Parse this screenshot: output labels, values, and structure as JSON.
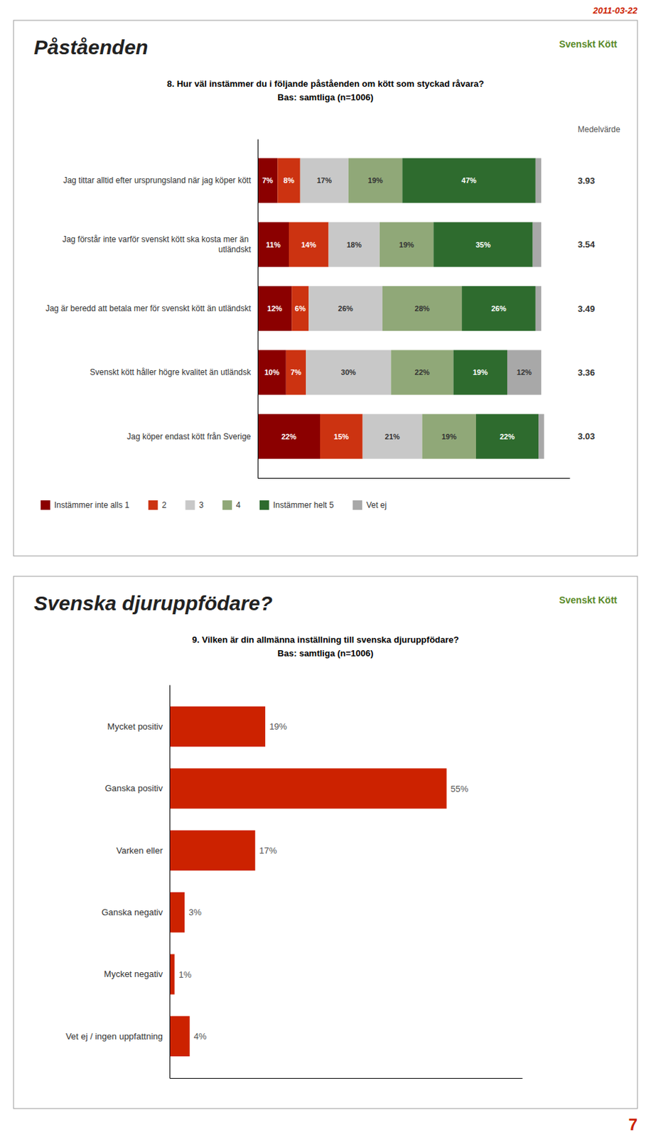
{
  "chart_data": [
    {
      "type": "bar",
      "orientation": "horizontal",
      "stacked": true,
      "title": "Påståenden",
      "subtitle": [
        "8. Hur väl instämmer du i följande påståenden om kött som styckad råvara?",
        "Bas: samtliga (n=1006)"
      ],
      "annotations": [
        "Svenskt Kött",
        "2011-03-22"
      ],
      "categories": [
        "Jag tittar alltid efter ursprungsland när jag köper kött",
        "Jag förstår inte varför svenskt kött ska kosta mer än utländskt",
        "Jag är beredd att betala mer för svenskt kött än utländskt",
        "Svenskt kött håller högre kvalitet än utländsk",
        "Jag köper endast kött från Sverige"
      ],
      "series": [
        {
          "name": "Instämmer inte alls 1",
          "color": "#8B0000",
          "values": [
            7,
            11,
            12,
            10,
            22
          ],
          "value_labels": [
            "7%",
            "11%",
            "12%",
            "10%",
            "22%"
          ]
        },
        {
          "name": "2",
          "color": "#CC3311",
          "values": [
            8,
            14,
            6,
            7,
            15
          ],
          "value_labels": [
            "8%",
            "14%",
            "6%",
            "7%",
            "15%"
          ]
        },
        {
          "name": "3",
          "color": "#C8C8C8",
          "values": [
            17,
            18,
            26,
            30,
            21
          ],
          "value_labels": [
            "17%",
            "18%",
            "26%",
            "30%",
            "21%"
          ]
        },
        {
          "name": "4",
          "color": "#90A878",
          "values": [
            19,
            19,
            28,
            22,
            19
          ],
          "value_labels": [
            "19%",
            "19%",
            "28%",
            "22%",
            "19%"
          ]
        },
        {
          "name": "Instämmer helt 5",
          "color": "#2E6B2E",
          "values": [
            47,
            35,
            26,
            19,
            22
          ],
          "value_labels": [
            "47%",
            "35%",
            "26%",
            "19%",
            "22%"
          ]
        },
        {
          "name": "Vet ej",
          "color": "#A8A8A8",
          "values": [
            2,
            3,
            2,
            12,
            2
          ],
          "value_labels": [
            null,
            null,
            null,
            "12%",
            null
          ]
        }
      ],
      "mean_label": "Medelvärde",
      "means": [
        3.93,
        3.54,
        3.49,
        3.36,
        3.03
      ],
      "xlim": [
        0,
        110
      ],
      "data_labels": true,
      "tick_labels": "y",
      "legend": "bottom"
    },
    {
      "type": "bar",
      "orientation": "horizontal",
      "title": "Svenska djuruppfödare?",
      "subtitle": [
        "9. Vilken är din allmänna inställning till svenska djuruppfödare?",
        "Bas: samtliga (n=1006)"
      ],
      "annotations": [
        "Svenskt Kött",
        "7"
      ],
      "categories": [
        "Mycket positiv",
        "Ganska positiv",
        "Varken eller",
        "Ganska negativ",
        "Mycket negativ",
        "Vet ej / ingen uppfattning"
      ],
      "values": [
        19,
        55,
        17,
        3,
        1,
        4
      ],
      "value_labels": [
        "19%",
        "55%",
        "17%",
        "3%",
        "1%",
        "4%"
      ],
      "color": "#CC2200",
      "xlim": [
        0,
        70
      ],
      "data_labels": true,
      "tick_labels": "y"
    }
  ]
}
